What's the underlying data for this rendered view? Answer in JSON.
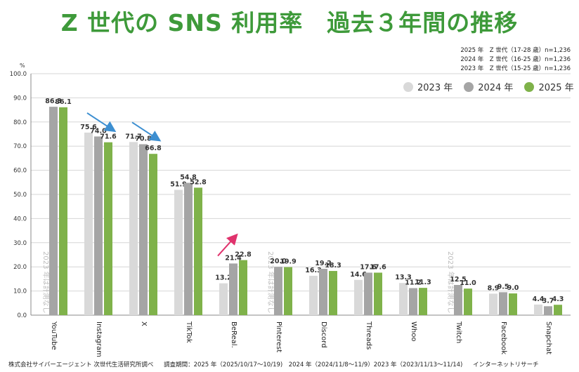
{
  "title": "Z 世代の SNS 利用率　過去３年間の推移",
  "sample_notes": [
    "2025 年　Z 世代（17-28 歳）n=1,236",
    "2024 年　Z 世代（16-25 歳）n=1,236",
    "2023 年　Z 世代（15-25 歳）n=1,236"
  ],
  "footer": {
    "source": "株式会社サイバーエージェント 次世代生活研究所調べ",
    "period": "調査期間：2025 年（2025/10/17〜10/19)　2024 年（2024/11/8〜11/9）2023 年（2023/11/13〜11/14)",
    "method": "インターネットリサーチ"
  },
  "chart_data": {
    "type": "bar",
    "ylabel": "%",
    "ylim": [
      0,
      100
    ],
    "yticks": [
      "0.0",
      "10.0",
      "20.0",
      "30.0",
      "40.0",
      "50.0",
      "60.0",
      "70.0",
      "80.0",
      "90.0",
      "100.0"
    ],
    "grid": true,
    "legend_position": "top-right",
    "categories": [
      "YouTube",
      "Instagram",
      "X",
      "TikTok",
      "BeReal.",
      "Pinterest",
      "Discord",
      "Threads",
      "Whoo",
      "Twitch",
      "Facebook",
      "Snapchat"
    ],
    "series": [
      {
        "name": "2023 年",
        "color": "#d9d9d9",
        "values": [
          null,
          75.6,
          71.7,
          51.9,
          13.2,
          null,
          16.3,
          14.6,
          13.3,
          null,
          8.9,
          4.4
        ]
      },
      {
        "name": "2024 年",
        "color": "#a5a5a5",
        "values": [
          86.3,
          74.0,
          70.8,
          54.8,
          21.4,
          20.0,
          19.2,
          17.6,
          11.2,
          12.5,
          9.5,
          3.7
        ]
      },
      {
        "name": "2025 年",
        "color": "#7fb24a",
        "values": [
          86.1,
          71.6,
          66.8,
          52.8,
          22.8,
          19.9,
          18.3,
          17.6,
          11.3,
          11.0,
          9.0,
          4.3
        ]
      }
    ],
    "annotations": {
      "not_measured_text": "2023 年は計測なし",
      "not_measured_categories": [
        "YouTube",
        "Pinterest",
        "Twitch"
      ],
      "trend_arrows": [
        {
          "category": "Instagram",
          "direction": "down",
          "color": "#3d8fd1"
        },
        {
          "category": "X",
          "direction": "down",
          "color": "#3d8fd1"
        },
        {
          "category": "BeReal.",
          "direction": "up",
          "color": "#e0336d"
        }
      ]
    }
  }
}
